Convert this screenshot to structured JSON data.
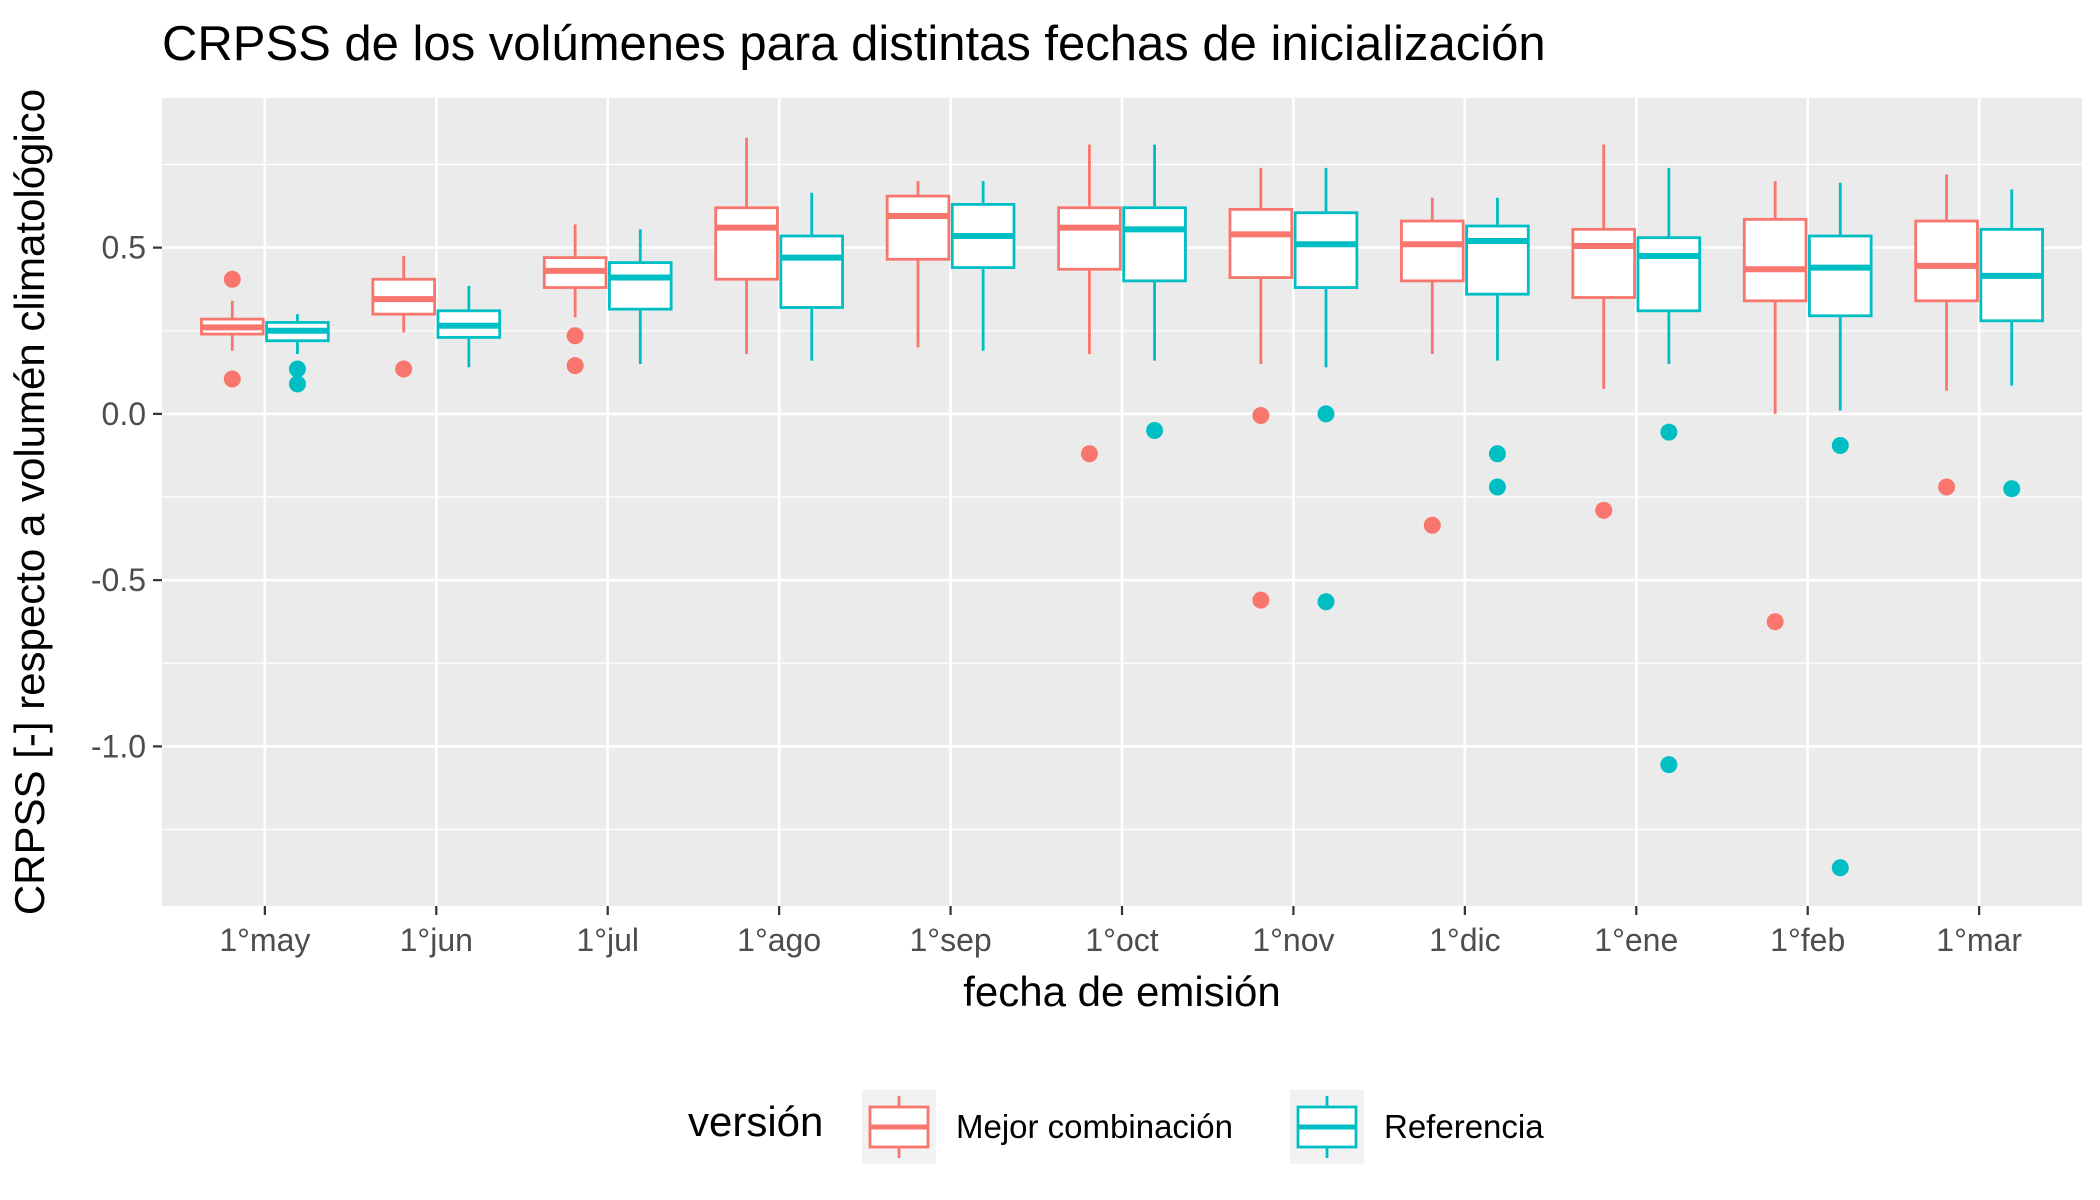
{
  "chart_data": {
    "type": "box",
    "title": "CRPSS de los volúmenes para distintas fechas de inicialización",
    "xlabel": "fecha de emisión",
    "ylabel": "CRPSS [-] respecto a volumén climatológico",
    "ylim": [
      -1.48,
      0.95
    ],
    "yticks": [
      0.5,
      0.0,
      -0.5,
      -1.0
    ],
    "ytick_labels": [
      "0.5",
      "0.0",
      "-0.5",
      "-1.0"
    ],
    "categories": [
      "1°may",
      "1°jun",
      "1°jul",
      "1°ago",
      "1°sep",
      "1°oct",
      "1°nov",
      "1°dic",
      "1°ene",
      "1°feb",
      "1°mar"
    ],
    "grid": true,
    "legend": {
      "title": "versión",
      "position": "bottom",
      "entries": [
        "Mejor combinación",
        "Referencia"
      ]
    },
    "series": [
      {
        "name": "Mejor combinación",
        "color": "#F8766D",
        "boxes": [
          {
            "whisker_low": 0.19,
            "q1": 0.24,
            "median": 0.26,
            "q3": 0.285,
            "whisker_high": 0.34,
            "outliers": [
              0.405,
              0.105
            ]
          },
          {
            "whisker_low": 0.245,
            "q1": 0.3,
            "median": 0.345,
            "q3": 0.405,
            "whisker_high": 0.475,
            "outliers": [
              0.135
            ]
          },
          {
            "whisker_low": 0.29,
            "q1": 0.38,
            "median": 0.43,
            "q3": 0.47,
            "whisker_high": 0.57,
            "outliers": [
              0.235,
              0.145
            ]
          },
          {
            "whisker_low": 0.18,
            "q1": 0.405,
            "median": 0.56,
            "q3": 0.62,
            "whisker_high": 0.83,
            "outliers": []
          },
          {
            "whisker_low": 0.2,
            "q1": 0.465,
            "median": 0.595,
            "q3": 0.655,
            "whisker_high": 0.7,
            "outliers": []
          },
          {
            "whisker_low": 0.18,
            "q1": 0.435,
            "median": 0.56,
            "q3": 0.62,
            "whisker_high": 0.81,
            "outliers": [
              -0.12
            ]
          },
          {
            "whisker_low": 0.15,
            "q1": 0.41,
            "median": 0.54,
            "q3": 0.615,
            "whisker_high": 0.74,
            "outliers": [
              -0.005,
              -0.56
            ]
          },
          {
            "whisker_low": 0.18,
            "q1": 0.4,
            "median": 0.51,
            "q3": 0.58,
            "whisker_high": 0.65,
            "outliers": [
              -0.335
            ]
          },
          {
            "whisker_low": 0.075,
            "q1": 0.35,
            "median": 0.505,
            "q3": 0.555,
            "whisker_high": 0.81,
            "outliers": [
              -0.29
            ]
          },
          {
            "whisker_low": 0.0,
            "q1": 0.34,
            "median": 0.435,
            "q3": 0.585,
            "whisker_high": 0.7,
            "outliers": [
              -0.625
            ]
          },
          {
            "whisker_low": 0.07,
            "q1": 0.34,
            "median": 0.445,
            "q3": 0.58,
            "whisker_high": 0.72,
            "outliers": [
              -0.22
            ]
          }
        ]
      },
      {
        "name": "Referencia",
        "color": "#00BFC4",
        "boxes": [
          {
            "whisker_low": 0.18,
            "q1": 0.22,
            "median": 0.25,
            "q3": 0.275,
            "whisker_high": 0.3,
            "outliers": [
              0.135,
              0.09
            ]
          },
          {
            "whisker_low": 0.14,
            "q1": 0.23,
            "median": 0.265,
            "q3": 0.31,
            "whisker_high": 0.385,
            "outliers": []
          },
          {
            "whisker_low": 0.15,
            "q1": 0.315,
            "median": 0.41,
            "q3": 0.455,
            "whisker_high": 0.555,
            "outliers": []
          },
          {
            "whisker_low": 0.16,
            "q1": 0.32,
            "median": 0.47,
            "q3": 0.535,
            "whisker_high": 0.665,
            "outliers": []
          },
          {
            "whisker_low": 0.19,
            "q1": 0.44,
            "median": 0.535,
            "q3": 0.63,
            "whisker_high": 0.7,
            "outliers": []
          },
          {
            "whisker_low": 0.16,
            "q1": 0.4,
            "median": 0.555,
            "q3": 0.62,
            "whisker_high": 0.81,
            "outliers": [
              -0.05
            ]
          },
          {
            "whisker_low": 0.14,
            "q1": 0.38,
            "median": 0.51,
            "q3": 0.605,
            "whisker_high": 0.74,
            "outliers": [
              0.0,
              -0.565
            ]
          },
          {
            "whisker_low": 0.16,
            "q1": 0.36,
            "median": 0.52,
            "q3": 0.565,
            "whisker_high": 0.65,
            "outliers": [
              -0.12,
              -0.22
            ]
          },
          {
            "whisker_low": 0.15,
            "q1": 0.31,
            "median": 0.475,
            "q3": 0.53,
            "whisker_high": 0.74,
            "outliers": [
              -0.055,
              -1.055
            ]
          },
          {
            "whisker_low": 0.01,
            "q1": 0.295,
            "median": 0.44,
            "q3": 0.535,
            "whisker_high": 0.695,
            "outliers": [
              -0.095,
              -1.365
            ]
          },
          {
            "whisker_low": 0.085,
            "q1": 0.28,
            "median": 0.415,
            "q3": 0.555,
            "whisker_high": 0.675,
            "outliers": [
              -0.225
            ]
          }
        ]
      }
    ]
  }
}
